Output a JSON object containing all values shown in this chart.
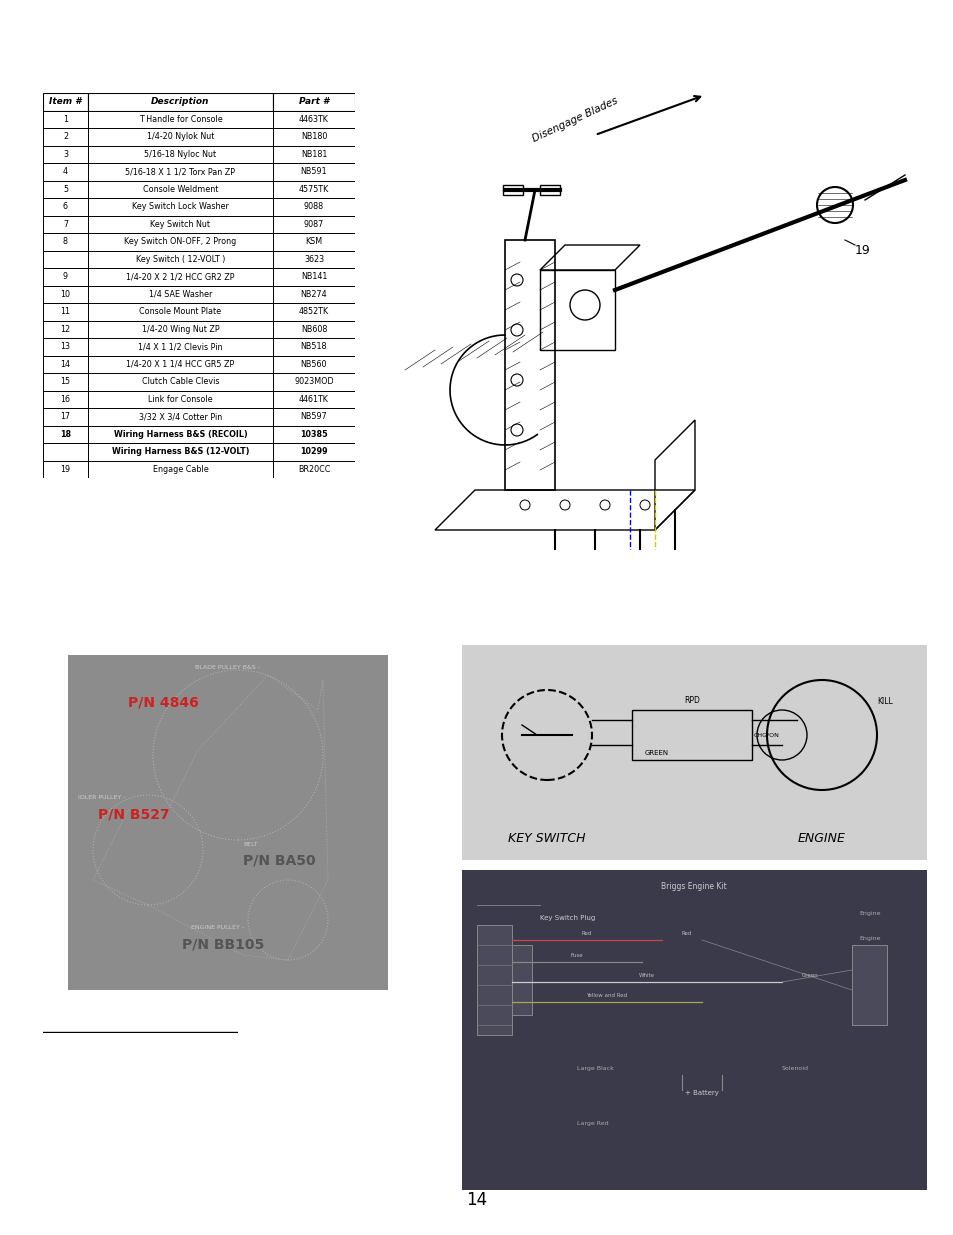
{
  "page_bg": "#ffffff",
  "page_number": "14",
  "table": {
    "headers": [
      "Item #",
      "Description",
      "Part #"
    ],
    "rows": [
      [
        "1",
        "T Handle for Console",
        "4463TK"
      ],
      [
        "2",
        "1/4-20 Nylok Nut",
        "NB180"
      ],
      [
        "3",
        "5/16-18 Nyloc Nut",
        "NB181"
      ],
      [
        "4",
        "5/16-18 X 1 1/2 Torx Pan ZP",
        "NB591"
      ],
      [
        "5",
        "Console Weldment",
        "4575TK"
      ],
      [
        "6",
        "Key Switch Lock Washer",
        "9088"
      ],
      [
        "7",
        "Key Switch Nut",
        "9087"
      ],
      [
        "8",
        "Key Switch ON-OFF, 2 Prong",
        "KSM"
      ],
      [
        "",
        "Key Switch ( 12-VOLT )",
        "3623"
      ],
      [
        "9",
        "1/4-20 X 2 1/2 HCC GR2 ZP",
        "NB141"
      ],
      [
        "10",
        "1/4 SAE Washer",
        "NB274"
      ],
      [
        "11",
        "Console Mount Plate",
        "4852TK"
      ],
      [
        "12",
        "1/4-20 Wing Nut ZP",
        "NB608"
      ],
      [
        "13",
        "1/4 X 1 1/2 Clevis Pin",
        "NB518"
      ],
      [
        "14",
        "1/4-20 X 1 1/4 HCC GR5 ZP",
        "NB560"
      ],
      [
        "15",
        "Clutch Cable Clevis",
        "9023MOD"
      ],
      [
        "16",
        "Link for Console",
        "4461TK"
      ],
      [
        "17",
        "3/32 X 3/4 Cotter Pin",
        "NB597"
      ],
      [
        "18",
        "Wiring Harness B&S (RECOIL)",
        "10385"
      ],
      [
        "",
        "Wiring Harness B&S (12-VOLT)",
        "10299"
      ],
      [
        "19",
        "Engage Cable",
        "BR20CC"
      ]
    ],
    "bold_rows": [
      18,
      19
    ]
  }
}
